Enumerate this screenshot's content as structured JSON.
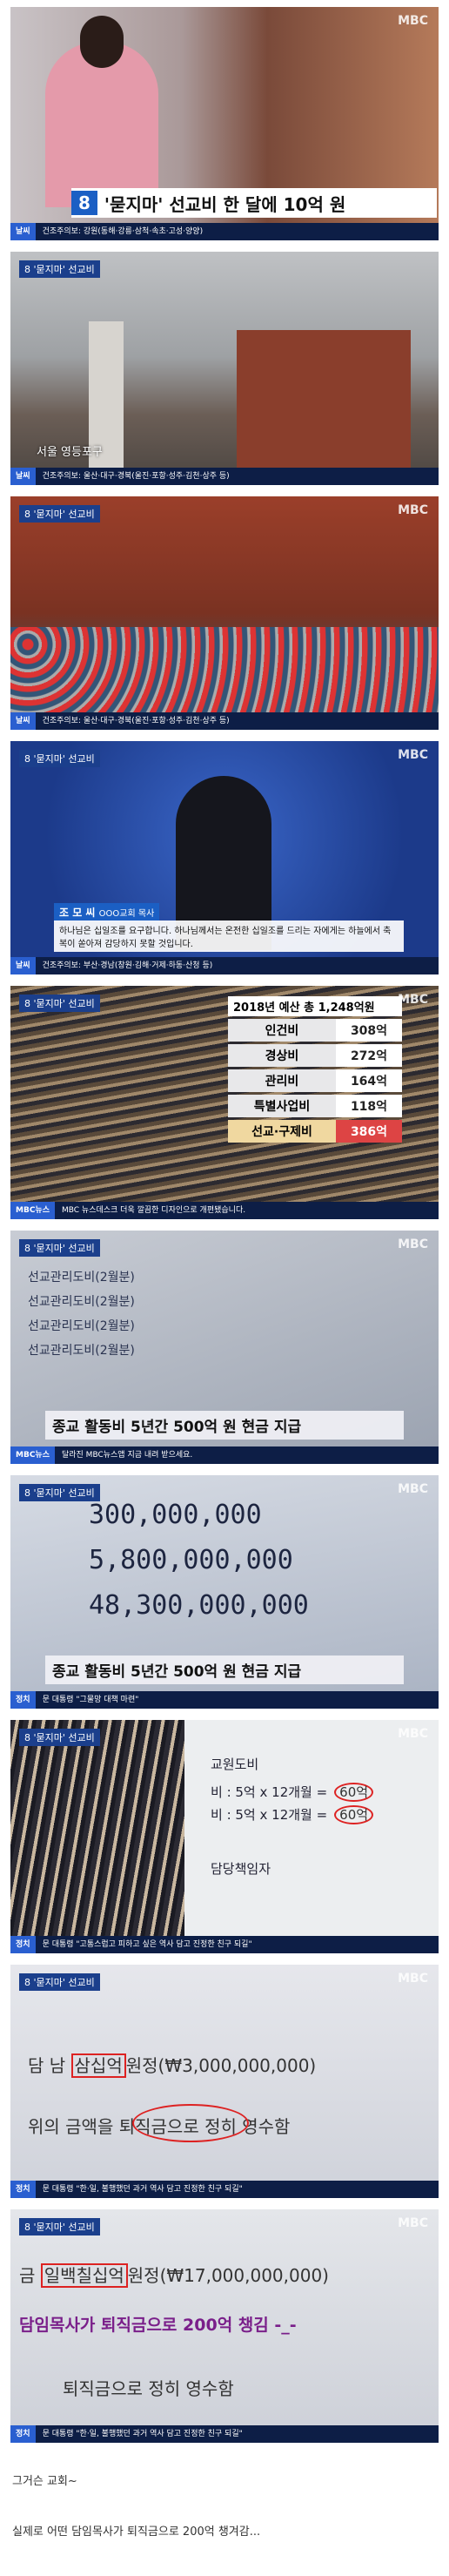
{
  "frames": [
    {
      "logo": "MBC",
      "badge": "8",
      "headline": "'묻지마' 선교비 한 달에 10억 원",
      "ticker_label": "날씨",
      "ticker": "건조주의보: 강원(동해·강릉·삼척·속초·고성·양양)"
    },
    {
      "logo": "MBC",
      "badge": "8",
      "bug": "'묻지마' 선교비",
      "caption": "서울 영등포구",
      "ticker_label": "날씨",
      "ticker": "건조주의보: 울산·대구·경북(울진·포항·성주·김천·상주 등)"
    },
    {
      "logo": "MBC",
      "badge": "8",
      "bug": "'묻지마' 선교비",
      "ticker_label": "날씨",
      "ticker": "건조주의보: 울산·대구·경북(울진·포항·성주·김천·상주 등)"
    },
    {
      "logo": "MBC",
      "badge": "8",
      "bug": "'묻지마' 선교비",
      "name": "조 모 씨",
      "role": "OOO교회 목사",
      "quote": "하나님은 십일조를 요구합니다. 하나님께서는 온전한 십일조를 드리는 자에게는 하늘에서 축복이 쏟아져 감당하지 못할 것입니다.",
      "ticker_label": "날씨",
      "ticker": "건조주의보: 부산·경남(창원·김해·거제·하동·산청 등)"
    },
    {
      "logo": "MBC",
      "badge": "8",
      "bug": "'묻지마' 선교비",
      "budget_title": "2018년 예산 총 1,248억원",
      "rows": [
        [
          "인건비",
          "308억"
        ],
        [
          "경상비",
          "272억"
        ],
        [
          "관리비",
          "164억"
        ],
        [
          "특별사업비",
          "118억"
        ],
        [
          "선교·구제비",
          "386억"
        ]
      ],
      "ticker_label": "MBC뉴스",
      "ticker": "MBC 뉴스데스크 더욱 깔끔한 디자인으로 개편됐습니다."
    },
    {
      "logo": "MBC",
      "badge": "8",
      "bug": "'묻지마' 선교비",
      "doc_lines": [
        "선교관리도비(2월분)",
        "선교관리도비(2월분)",
        "선교관리도비(2월분)",
        "선교관리도비(2월분)"
      ],
      "caption": "종교 활동비 5년간 500억 원 현금 지급",
      "ticker_label": "MBC뉴스",
      "ticker": "달라진 MBC뉴스앱 지금 내려 받으세요."
    },
    {
      "logo": "MBC",
      "badge": "8",
      "bug": "'묻지마' 선교비",
      "amounts": [
        "300,000,000",
        "5,800,000,000",
        "48,300,000,000"
      ],
      "caption": "종교 활동비 5년간 500억 원 현금 지급",
      "ticker_label": "정치",
      "ticker": "문 대통령 \"그물망 대책 마련\""
    },
    {
      "logo": "MBC",
      "badge": "8",
      "bug": "'묻지마' 선교비",
      "doc_title": "교원도비",
      "doc_rows": [
        "비 : 5억 x 12개월 =",
        "비 : 5억 x 12개월 ="
      ],
      "circled": [
        "60억",
        "60억"
      ],
      "doc_foot": "담당책임자",
      "ticker_label": "정치",
      "ticker": "문 대통령 \"고통스럽고 피하고 싶은 역사 담고 진정한 친구 되길\""
    },
    {
      "logo": "MBC",
      "badge": "8",
      "bug": "'묻지마' 선교비",
      "receipt_amount": "삼십억",
      "receipt_rest": "원정(₩3,000,000,000)",
      "receipt_prefix": "담 남",
      "receipt_line": "위의 금액을 퇴직금으로 정히 영수함",
      "ticker_label": "정치",
      "ticker": "문 대통령 \"한·일, 불행했던 과거 역사 담고 진정한 친구 되길\""
    },
    {
      "logo": "MBC",
      "badge": "8",
      "bug": "'묻지마' 선교비",
      "receipt_amount": "일백칠십억",
      "receipt_rest": "원정(₩17,000,000,000)",
      "receipt_prefix": "금",
      "overlay": "담임목사가 퇴직금으로 200억 챙김 -_-",
      "receipt_line": "퇴직금으로 정히 영수함",
      "ticker_label": "정치",
      "ticker": "문 대통령 \"한·일, 불행했던 과거 역사 담고 진정한 친구 되길\""
    }
  ],
  "post": {
    "line1": "그거슨 교회~",
    "line2": "실제로 어떤 담임목사가 퇴직금으로 200억 챙겨감..."
  }
}
